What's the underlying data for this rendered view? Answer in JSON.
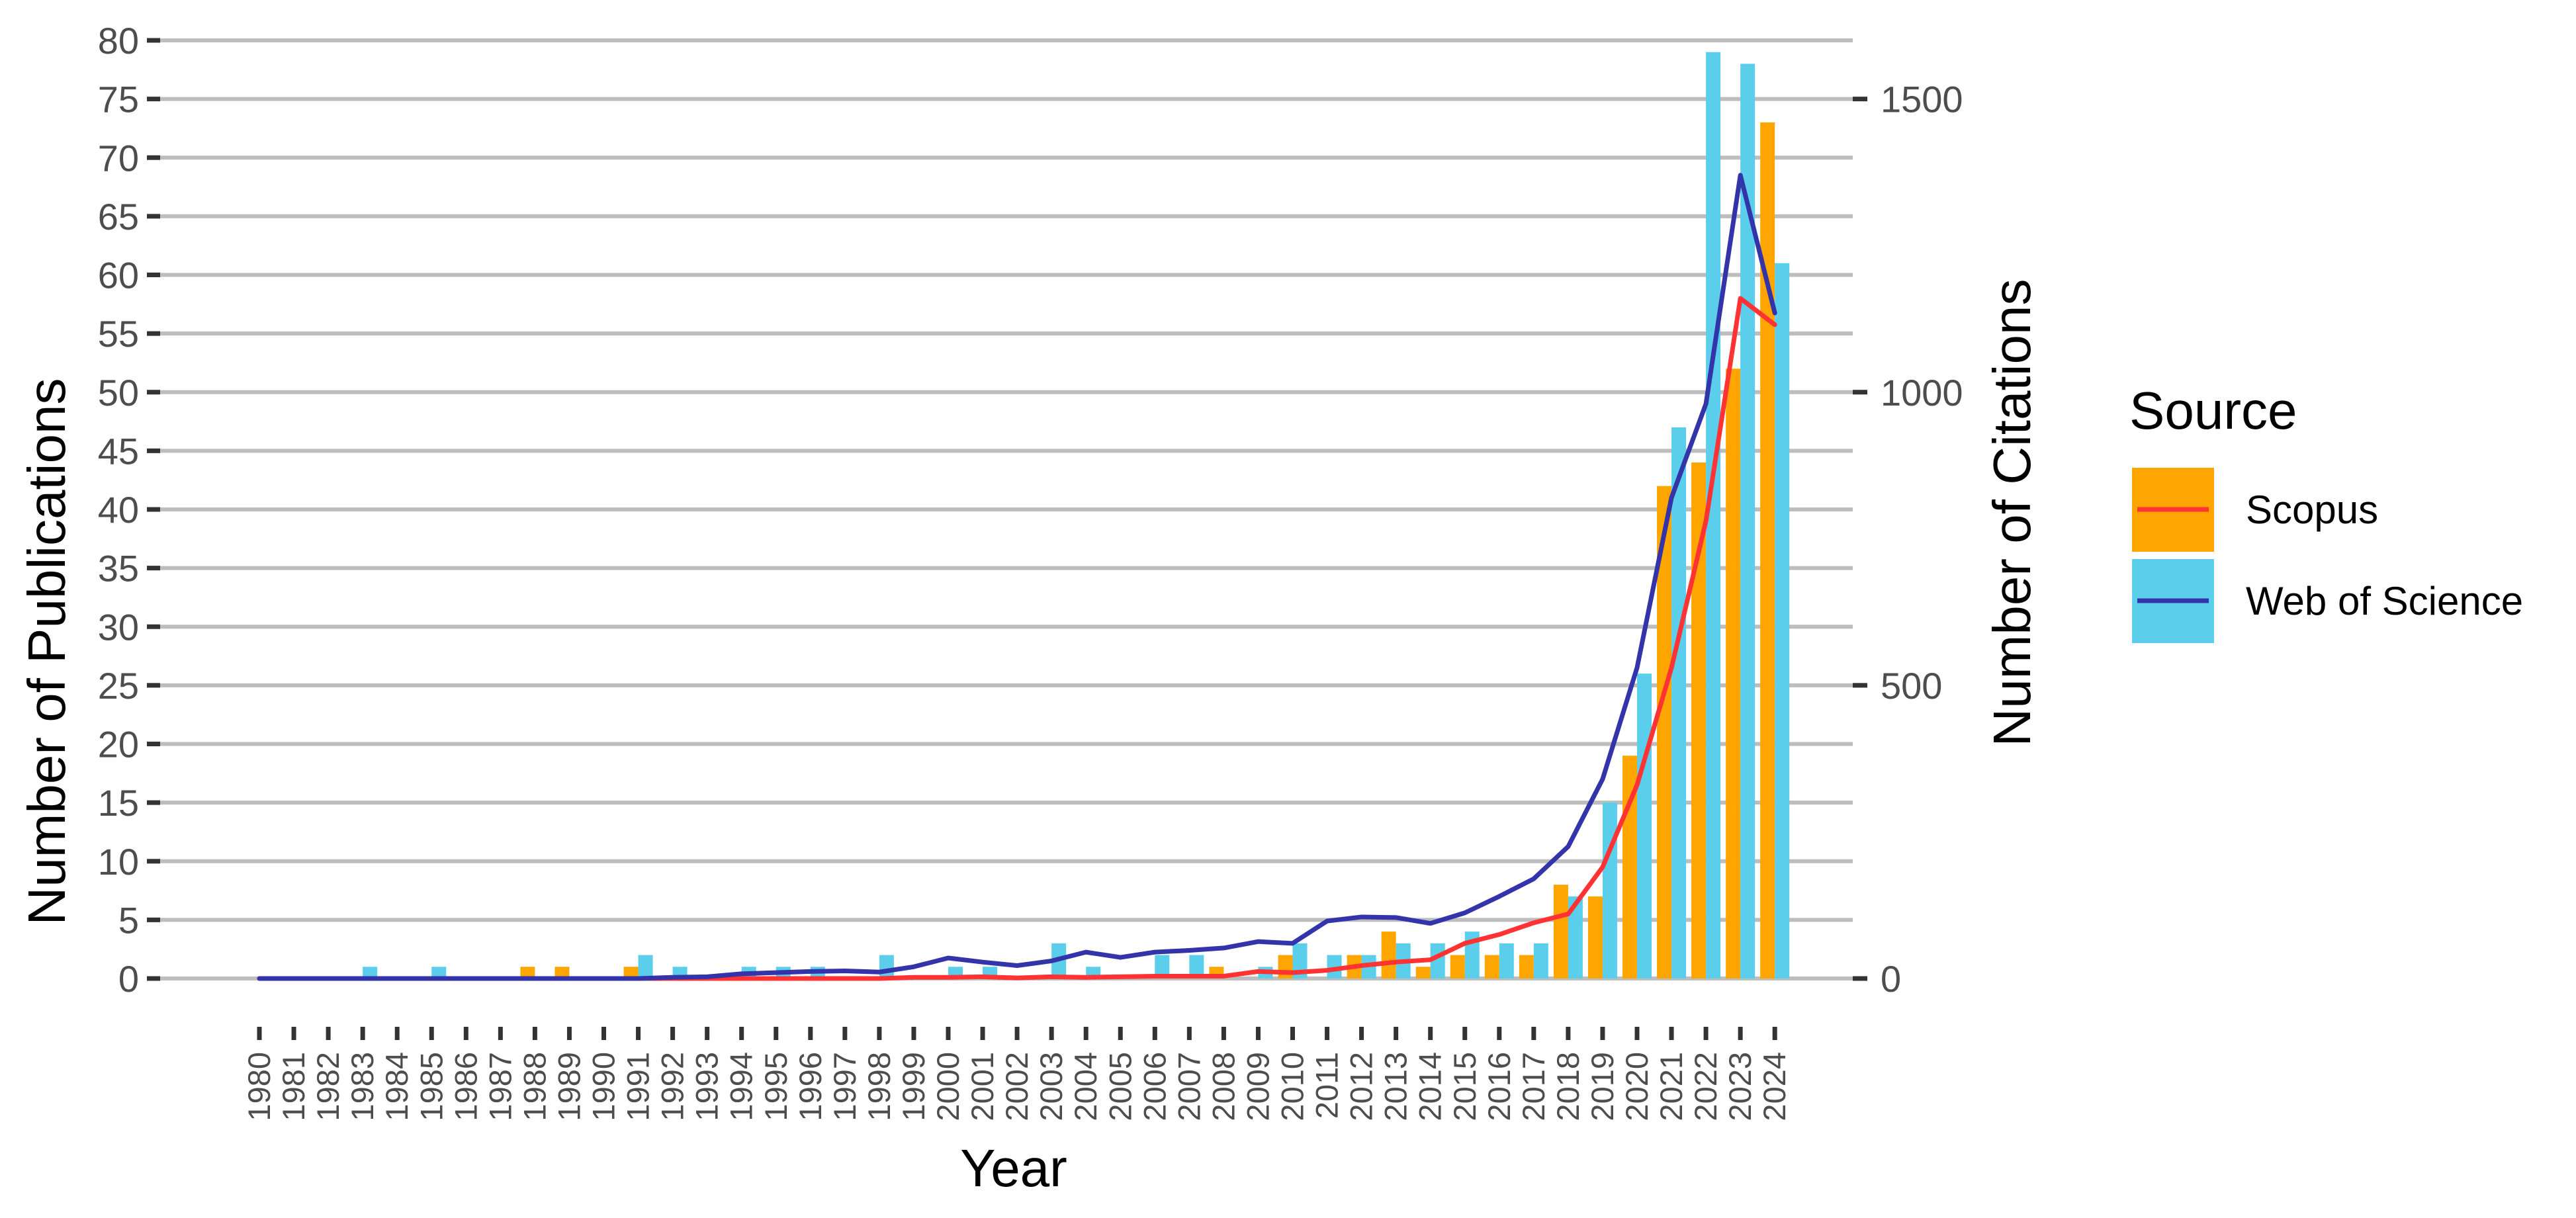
{
  "chart_data": {
    "type": "bar",
    "title": "",
    "xlabel": "Year",
    "ylabel": "Number of Publications",
    "y2label": "Number of Citations",
    "ylim": [
      0,
      80
    ],
    "y2lim": [
      0,
      1600
    ],
    "yticks": [
      0,
      5,
      10,
      15,
      20,
      25,
      30,
      35,
      40,
      45,
      50,
      55,
      60,
      65,
      70,
      75,
      80
    ],
    "y2ticks": [
      0,
      500,
      1000,
      1500
    ],
    "grid": true,
    "legend": {
      "title": "Source",
      "position": "right",
      "entries": [
        {
          "label": "Scopus",
          "bar_color": "#FFA500",
          "line_color": "#FF3333"
        },
        {
          "label": "Web of Science",
          "bar_color": "#5BCEEB",
          "line_color": "#3333AA"
        }
      ]
    },
    "categories": [
      "1980",
      "1981",
      "1982",
      "1983",
      "1984",
      "1985",
      "1986",
      "1987",
      "1988",
      "1989",
      "1990",
      "1991",
      "1992",
      "1993",
      "1994",
      "1995",
      "1996",
      "1997",
      "1998",
      "1999",
      "2000",
      "2001",
      "2002",
      "2003",
      "2004",
      "2005",
      "2006",
      "2007",
      "2008",
      "2009",
      "2010",
      "2011",
      "2012",
      "2013",
      "2014",
      "2015",
      "2016",
      "2017",
      "2018",
      "2019",
      "2020",
      "2021",
      "2022",
      "2023",
      "2024"
    ],
    "series": [
      {
        "name": "Scopus",
        "kind": "bar",
        "axis": "left",
        "color": "#FFA500",
        "values": [
          0,
          0,
          0,
          0,
          0,
          0,
          0,
          0,
          1,
          1,
          0,
          1,
          0,
          0,
          0,
          0,
          0,
          0,
          0,
          0,
          0,
          0,
          0,
          0,
          0,
          0,
          0,
          0,
          1,
          0,
          2,
          0,
          2,
          4,
          1,
          2,
          2,
          2,
          8,
          7,
          19,
          42,
          44,
          52,
          73
        ]
      },
      {
        "name": "Web of Science",
        "kind": "bar",
        "axis": "left",
        "color": "#5BCEEB",
        "values": [
          0,
          0,
          0,
          1,
          0,
          1,
          0,
          0,
          0,
          0,
          0,
          2,
          1,
          0,
          1,
          1,
          1,
          0,
          2,
          0,
          1,
          1,
          0,
          3,
          1,
          0,
          2,
          2,
          0,
          1,
          3,
          2,
          2,
          3,
          3,
          4,
          3,
          3,
          7,
          15,
          26,
          47,
          79,
          78,
          61
        ]
      },
      {
        "name": "Scopus",
        "kind": "line",
        "axis": "right",
        "color": "#FF3333",
        "values": [
          0,
          0,
          0,
          0,
          0,
          0,
          0,
          0,
          0,
          0,
          0,
          0,
          0,
          0,
          0,
          0,
          0,
          0,
          0,
          2,
          2,
          3,
          1,
          3,
          2,
          3,
          4,
          4,
          4,
          12,
          10,
          14,
          22,
          28,
          32,
          60,
          75,
          95,
          110,
          190,
          330,
          530,
          780,
          1160,
          1115
        ]
      },
      {
        "name": "Web of Science",
        "kind": "line",
        "axis": "right",
        "color": "#3333AA",
        "values": [
          0,
          0,
          0,
          0,
          0,
          0,
          0,
          0,
          0,
          0,
          0,
          0,
          2,
          3,
          8,
          10,
          12,
          13,
          11,
          20,
          35,
          28,
          22,
          30,
          45,
          36,
          45,
          48,
          52,
          63,
          60,
          98,
          105,
          104,
          94,
          112,
          140,
          170,
          225,
          340,
          530,
          820,
          980,
          1370,
          1135
        ]
      }
    ]
  }
}
